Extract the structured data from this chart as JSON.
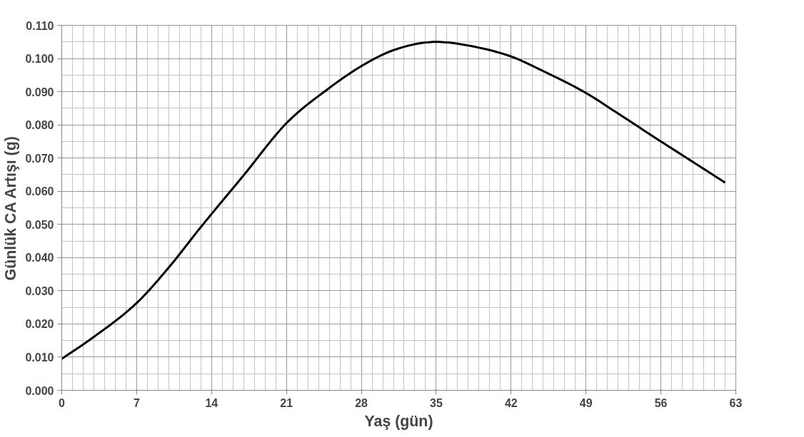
{
  "chart_data": {
    "type": "line",
    "xlabel": "Yaş (gün)",
    "ylabel": "Günlük CA Artışı (g)",
    "x": [
      0,
      3,
      7,
      10,
      13,
      17,
      21,
      25,
      28,
      31,
      35,
      38,
      42,
      45,
      49,
      52,
      56,
      59,
      62
    ],
    "series": [
      {
        "color": "#000000",
        "values": [
          0.0095,
          0.0161,
          0.0263,
          0.037,
          0.0492,
          0.0648,
          0.0805,
          0.0911,
          0.0977,
          0.1025,
          0.105,
          0.1039,
          0.1006,
          0.0962,
          0.0896,
          0.0834,
          0.075,
          0.0688,
          0.0626
        ]
      }
    ],
    "xlim": [
      0,
      63
    ],
    "xticks": [
      0,
      7,
      14,
      21,
      28,
      35,
      42,
      49,
      56,
      63
    ],
    "ylim": [
      0,
      0.11
    ],
    "yticks": [
      {
        "value": 0,
        "label": "0.000"
      },
      {
        "value": 0.01,
        "label": "0.010"
      },
      {
        "value": 0.02,
        "label": "0.020"
      },
      {
        "value": 0.03,
        "label": "0.030"
      },
      {
        "value": 0.04,
        "label": "0.040"
      },
      {
        "value": 0.05,
        "label": "0.050"
      },
      {
        "value": 0.06,
        "label": "0.060"
      },
      {
        "value": 0.07,
        "label": "0.070"
      },
      {
        "value": 0.08,
        "label": "0.080"
      },
      {
        "value": 0.09,
        "label": "0.090"
      },
      {
        "value": 0.1,
        "label": "0.100"
      },
      {
        "value": 0.11,
        "label": "0.110"
      }
    ],
    "grid": true,
    "line_style": "solid",
    "marker": "none"
  }
}
